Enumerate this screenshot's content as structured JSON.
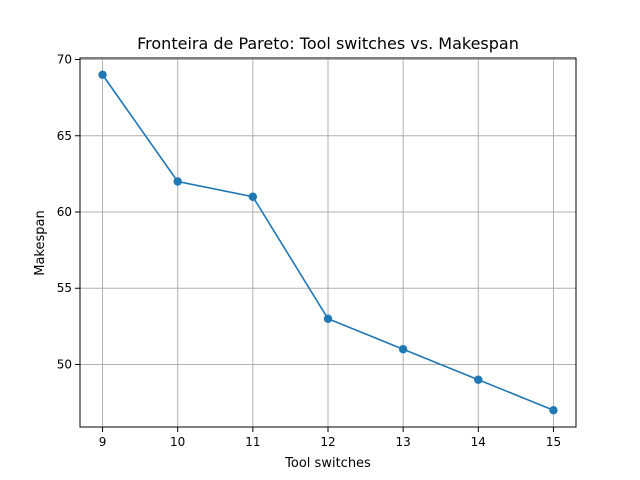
{
  "chart_data": {
    "type": "line",
    "title": "Fronteira de Pareto: Tool switches vs. Makespan",
    "xlabel": "Tool switches",
    "ylabel": "Makespan",
    "x": [
      9,
      10,
      11,
      12,
      13,
      14,
      15
    ],
    "series": [
      {
        "values": [
          69,
          62,
          61,
          53,
          51,
          49,
          47
        ]
      }
    ],
    "xlim": [
      8.7,
      15.3
    ],
    "ylim": [
      45.9,
      70.1
    ],
    "xticks": [
      9,
      10,
      11,
      12,
      13,
      14,
      15
    ],
    "yticks": [
      50,
      55,
      60,
      65,
      70
    ],
    "grid": true,
    "markers": "circle",
    "colors": {
      "line": "#1f77b4",
      "grid": "#b0b0b0"
    }
  }
}
